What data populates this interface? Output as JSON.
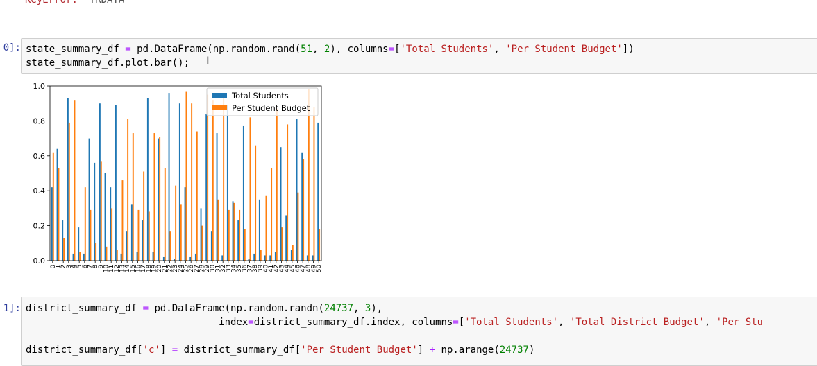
{
  "error_output": {
    "name": "KeyError",
    "colon": ": ",
    "value": "'YRDATA'"
  },
  "cell_30": {
    "prompt": "0]:",
    "lines": [
      [
        {
          "t": "state_summary_df ",
          "c": ""
        },
        {
          "t": "=",
          "c": "op"
        },
        {
          "t": " pd.DataFrame(np.random.rand(",
          "c": ""
        },
        {
          "t": "51",
          "c": "num"
        },
        {
          "t": ", ",
          "c": ""
        },
        {
          "t": "2",
          "c": "num"
        },
        {
          "t": "), columns",
          "c": ""
        },
        {
          "t": "=",
          "c": "op"
        },
        {
          "t": "[",
          "c": ""
        },
        {
          "t": "'Total Students'",
          "c": "str"
        },
        {
          "t": ", ",
          "c": ""
        },
        {
          "t": "'Per Student Budget'",
          "c": "str"
        },
        {
          "t": "])",
          "c": ""
        }
      ],
      [
        {
          "t": "state_summary_df.plot.bar();",
          "c": ""
        }
      ]
    ]
  },
  "cell_31": {
    "prompt": "1]:",
    "lines": [
      [
        {
          "t": "district_summary_df ",
          "c": ""
        },
        {
          "t": "=",
          "c": "op"
        },
        {
          "t": " pd.DataFrame(np.random.randn(",
          "c": ""
        },
        {
          "t": "24737",
          "c": "num"
        },
        {
          "t": ", ",
          "c": ""
        },
        {
          "t": "3",
          "c": "num"
        },
        {
          "t": "),",
          "c": ""
        }
      ],
      [
        {
          "t": "                                 index",
          "c": ""
        },
        {
          "t": "=",
          "c": "op"
        },
        {
          "t": "district_summary_df.index, columns",
          "c": ""
        },
        {
          "t": "=",
          "c": "op"
        },
        {
          "t": "[",
          "c": ""
        },
        {
          "t": "'Total Students'",
          "c": "str"
        },
        {
          "t": ", ",
          "c": ""
        },
        {
          "t": "'Total District Budget'",
          "c": "str"
        },
        {
          "t": ", ",
          "c": ""
        },
        {
          "t": "'Per Stu",
          "c": "str"
        }
      ],
      [],
      [
        {
          "t": "district_summary_df[",
          "c": ""
        },
        {
          "t": "'c'",
          "c": "str"
        },
        {
          "t": "] ",
          "c": ""
        },
        {
          "t": "=",
          "c": "op"
        },
        {
          "t": " district_summary_df[",
          "c": ""
        },
        {
          "t": "'Per Student Budget'",
          "c": "str"
        },
        {
          "t": "] ",
          "c": ""
        },
        {
          "t": "+",
          "c": "op"
        },
        {
          "t": " np.arange(",
          "c": ""
        },
        {
          "t": "24737",
          "c": "num"
        },
        {
          "t": ")",
          "c": ""
        }
      ]
    ]
  },
  "colors": {
    "series_1": "#1f77b4",
    "series_2": "#ff7f0e",
    "prompt": "#303f9f"
  },
  "chart_data": {
    "type": "bar",
    "categories": [
      "0",
      "1",
      "2",
      "3",
      "4",
      "5",
      "6",
      "7",
      "8",
      "9",
      "10",
      "11",
      "12",
      "13",
      "14",
      "15",
      "16",
      "17",
      "18",
      "19",
      "20",
      "21",
      "22",
      "23",
      "24",
      "25",
      "26",
      "27",
      "28",
      "29",
      "30",
      "31",
      "32",
      "33",
      "34",
      "35",
      "36",
      "37",
      "38",
      "39",
      "40",
      "41",
      "42",
      "43",
      "44",
      "45",
      "46",
      "47",
      "48",
      "49",
      "50"
    ],
    "series": [
      {
        "name": "Total Students",
        "values": [
          0.42,
          0.64,
          0.23,
          0.93,
          0.04,
          0.19,
          0.04,
          0.7,
          0.56,
          0.9,
          0.5,
          0.42,
          0.89,
          0.04,
          0.17,
          0.32,
          0.05,
          0.23,
          0.93,
          0.05,
          0.7,
          0.02,
          0.96,
          0.01,
          0.9,
          0.42,
          0.02,
          0.04,
          0.3,
          0.84,
          0.17,
          0.73,
          0.03,
          0.89,
          0.34,
          0.23,
          0.77,
          0.01,
          0.04,
          0.35,
          0.03,
          0.03,
          0.05,
          0.65,
          0.26,
          0.06,
          0.81,
          0.62,
          0.03,
          0.03,
          0.79
        ]
      },
      {
        "name": "Per Student Budget",
        "values": [
          0.62,
          0.53,
          0.13,
          0.79,
          0.92,
          0.05,
          0.42,
          0.29,
          0.1,
          0.57,
          0.08,
          0.3,
          0.06,
          0.46,
          0.81,
          0.73,
          0.29,
          0.51,
          0.28,
          0.73,
          0.71,
          0.53,
          0.17,
          0.43,
          0.32,
          0.97,
          0.9,
          0.74,
          0.2,
          0.95,
          0.92,
          0.35,
          0.95,
          0.29,
          0.33,
          0.29,
          0.18,
          0.82,
          0.66,
          0.06,
          0.37,
          0.53,
          0.87,
          0.19,
          0.78,
          0.09,
          0.39,
          0.58,
          0.98,
          0.88,
          0.18
        ]
      }
    ],
    "yticks": [
      "0.0",
      "0.2",
      "0.4",
      "0.6",
      "0.8",
      "1.0"
    ],
    "ylim": [
      0,
      1.0
    ],
    "legend": "top-right",
    "grid": false
  }
}
